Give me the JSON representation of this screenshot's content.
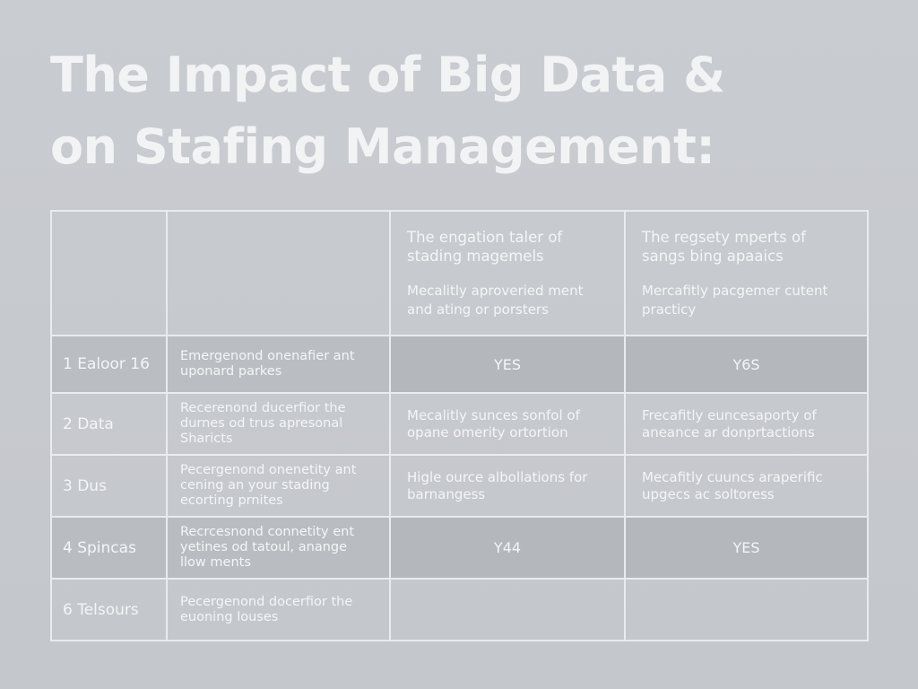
{
  "title": {
    "line1": "The Impact of Big Data &",
    "line2": "on Stafing Management:"
  },
  "table": {
    "header": {
      "col3": {
        "title": [
          "The engation taler of",
          "stading magemels"
        ],
        "subtitle": [
          "Mecalitly aproveried ment",
          "and ating or porsters"
        ]
      },
      "col4": {
        "title": [
          "The regsety mperts of",
          "sangs bing apaaics"
        ],
        "subtitle": [
          "Mercafitly pacgemer cutent",
          "practicy"
        ]
      }
    },
    "rows": [
      {
        "label": "1  Ealoor 16",
        "desc": [
          "Emergenond onenafier ant",
          "uponard parkes"
        ],
        "col3": [
          "YES"
        ],
        "col4": [
          "Y6S"
        ]
      },
      {
        "label": "2  Data",
        "desc": [
          "Recerenond ducerfior the",
          "durnes od trus apresonal",
          "Sharicts"
        ],
        "col3": [
          "Mecalitly sunces sonfol of",
          "opane omerity ortortion"
        ],
        "col4": [
          "Frecafitly euncesaporty of",
          "aneance ar donprtactions"
        ]
      },
      {
        "label": "3  Dus",
        "desc": [
          "Pecergenond onenetity ant",
          "cening an your stading",
          "ecorting prnites"
        ],
        "col3": [
          "Higle ource albollations for",
          "barnangess"
        ],
        "col4": [
          "Mecafitly cuuncs araperific",
          "upgecs ac soltoress"
        ]
      },
      {
        "label": "4  Spincas",
        "desc": [
          "Recrcesnond connetity ent",
          "yetines od tatoul, anange",
          "llow ments"
        ],
        "col3": [
          "Y44"
        ],
        "col4": [
          "YES"
        ]
      },
      {
        "label": "6  Telsours",
        "desc": [
          "Pecergenond docerfior the",
          "euoning louses"
        ],
        "col3": [],
        "col4": []
      }
    ]
  }
}
